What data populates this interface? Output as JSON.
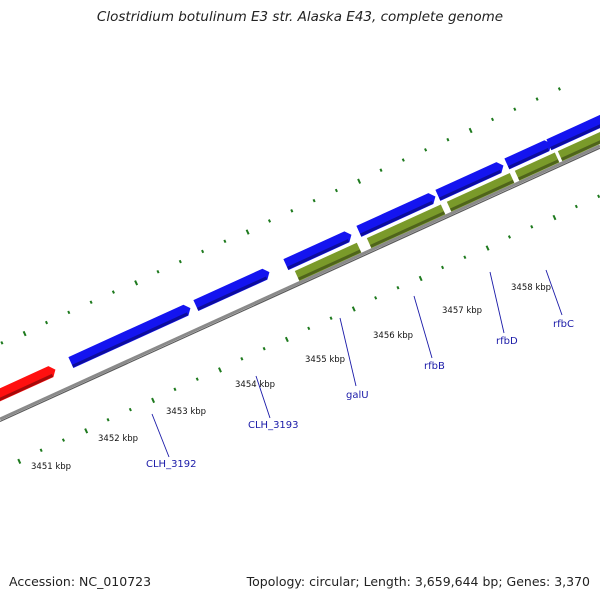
{
  "title": "Clostridium botulinum E3 str. Alaska E43, complete genome",
  "footer": {
    "accession": "Accession: NC_010723",
    "summary": "Topology: circular; Length: 3,659,644 bp; Genes: 3,370"
  },
  "colors": {
    "forward_cds": "#1414f0",
    "reverse_gene": "#7a9a2a",
    "highlight": "#ff1010",
    "backbone": "#8a8a8a",
    "ticks": "#1e7a1e",
    "label": "#1a1aa8"
  },
  "scale": {
    "unit": "kbp",
    "ticks": [
      {
        "position_kbp": 3451,
        "label": "3451 kbp"
      },
      {
        "position_kbp": 3452,
        "label": "3452 kbp"
      },
      {
        "position_kbp": 3453,
        "label": "3453 kbp"
      },
      {
        "position_kbp": 3454,
        "label": "3454 kbp"
      },
      {
        "position_kbp": 3455,
        "label": "3455 kbp"
      },
      {
        "position_kbp": 3456,
        "label": "3456 kbp"
      },
      {
        "position_kbp": 3457,
        "label": "3457 kbp"
      },
      {
        "position_kbp": 3458,
        "label": "3458 kbp"
      }
    ]
  },
  "genes": [
    {
      "label": "CLH_3192"
    },
    {
      "label": "CLH_3193"
    },
    {
      "label": "galU"
    },
    {
      "label": "rfbB"
    },
    {
      "label": "rfbD"
    },
    {
      "label": "rfbC"
    }
  ]
}
